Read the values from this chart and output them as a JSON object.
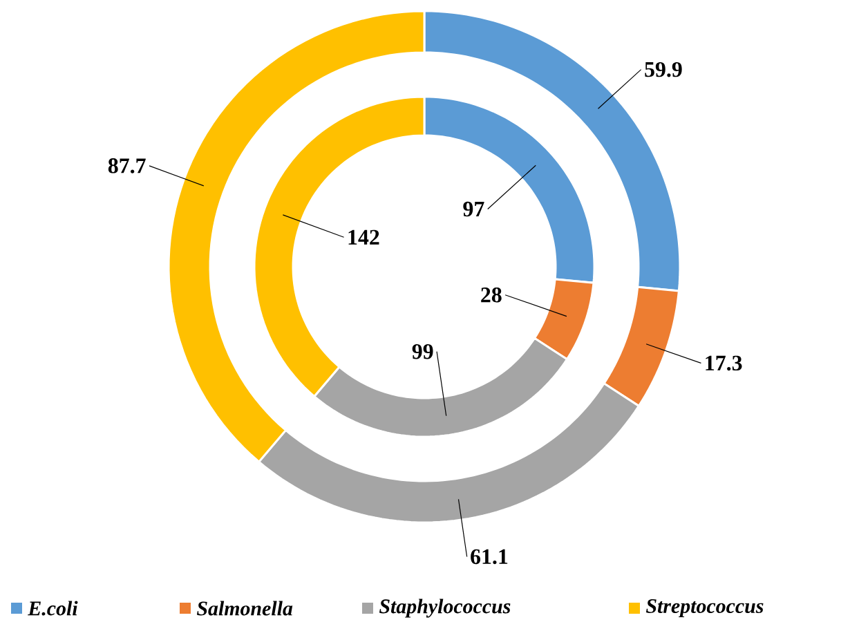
{
  "chart_data": {
    "type": "donut",
    "categories": [
      "E.coli",
      "Salmonella",
      "Staphylococcus",
      "Streptococcus"
    ],
    "colors": [
      "#5b9bd5",
      "#ed7d31",
      "#a5a5a5",
      "#ffc000"
    ],
    "series": [
      {
        "values": [
          97,
          28,
          99,
          142
        ]
      },
      {
        "values": [
          59.9,
          17.3,
          61.1,
          87.7
        ]
      }
    ],
    "data_labels": true,
    "legend": "bottom"
  }
}
